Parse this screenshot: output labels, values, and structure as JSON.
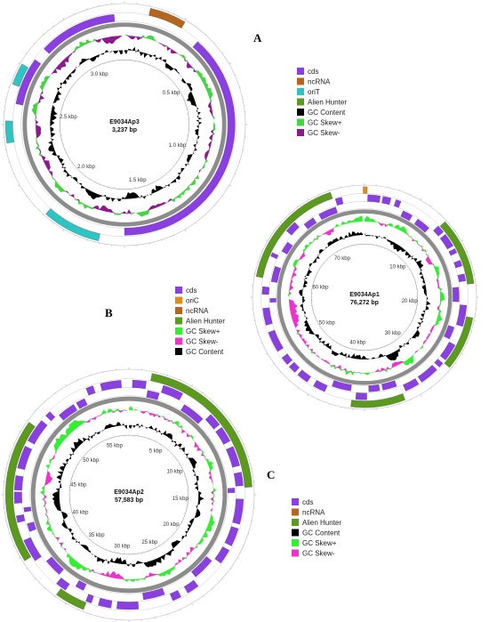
{
  "colors": {
    "cds": "#8a3fe0",
    "ncRNA": "#b5651d",
    "oriT": "#2ec4c4",
    "oriC": "#e08c1a",
    "alien_hunter": "#5b9a1e",
    "gc_content": "#000000",
    "gc_skew_plus_A": "#44d444",
    "gc_skew_minus_A": "#8c1a8c",
    "gc_skew_plus": "#33ee33",
    "gc_skew_minus": "#ee33cc",
    "backbone": "#8c8c8c"
  },
  "panels": [
    {
      "letter": "A",
      "plasmid_name": "E9034Ap3",
      "length_label": "3,237 bp",
      "ticks": [
        "0.5 kbp",
        "1.0 kbp",
        "1.5 kbp",
        "2.0 kbp",
        "2.5 kbp",
        "3.0 kbp"
      ],
      "legend": [
        {
          "label": "cds",
          "color_key": "cds"
        },
        {
          "label": "ncRNA",
          "color_key": "ncRNA"
        },
        {
          "label": "oriT",
          "color_key": "oriT"
        },
        {
          "label": "Alien Hunter",
          "color_key": "alien_hunter"
        },
        {
          "label": "GC Content",
          "color_key": "gc_content"
        },
        {
          "label": "GC Skew+",
          "color_key": "gc_skew_plus_A"
        },
        {
          "label": "GC Skew-",
          "color_key": "gc_skew_minus_A"
        }
      ]
    },
    {
      "letter": "B",
      "plasmid_name": "E9034Ap1",
      "length_label": "76,272 bp",
      "ticks": [
        "10 kbp",
        "20 kbp",
        "30 kbp",
        "40 kbp",
        "50 kbp",
        "60 kbp",
        "70 kbp"
      ],
      "legend": [
        {
          "label": "cds",
          "color_key": "cds"
        },
        {
          "label": "oriC",
          "color_key": "oriC"
        },
        {
          "label": "ncRNA",
          "color_key": "ncRNA"
        },
        {
          "label": "Alien Hunter",
          "color_key": "alien_hunter"
        },
        {
          "label": "GC Skew+",
          "color_key": "gc_skew_plus"
        },
        {
          "label": "GC Skew-",
          "color_key": "gc_skew_minus"
        },
        {
          "label": "GC Content",
          "color_key": "gc_content"
        }
      ]
    },
    {
      "letter": "C",
      "plasmid_name": "E9034Ap2",
      "length_label": "57,583 bp",
      "ticks": [
        "5 kbp",
        "10 kbp",
        "15 kbp",
        "20 kbp",
        "25 kbp",
        "30 kbp",
        "35 kbp",
        "40 kbp",
        "45 kbp",
        "50 kbp",
        "55 kbp"
      ],
      "legend": [
        {
          "label": "cds",
          "color_key": "cds"
        },
        {
          "label": "ncRNA",
          "color_key": "ncRNA"
        },
        {
          "label": "Alien Hunter",
          "color_key": "alien_hunter"
        },
        {
          "label": "GC Content",
          "color_key": "gc_content"
        },
        {
          "label": "GC Skew+",
          "color_key": "gc_skew_plus"
        },
        {
          "label": "GC Skew-",
          "color_key": "gc_skew_minus"
        }
      ]
    }
  ]
}
